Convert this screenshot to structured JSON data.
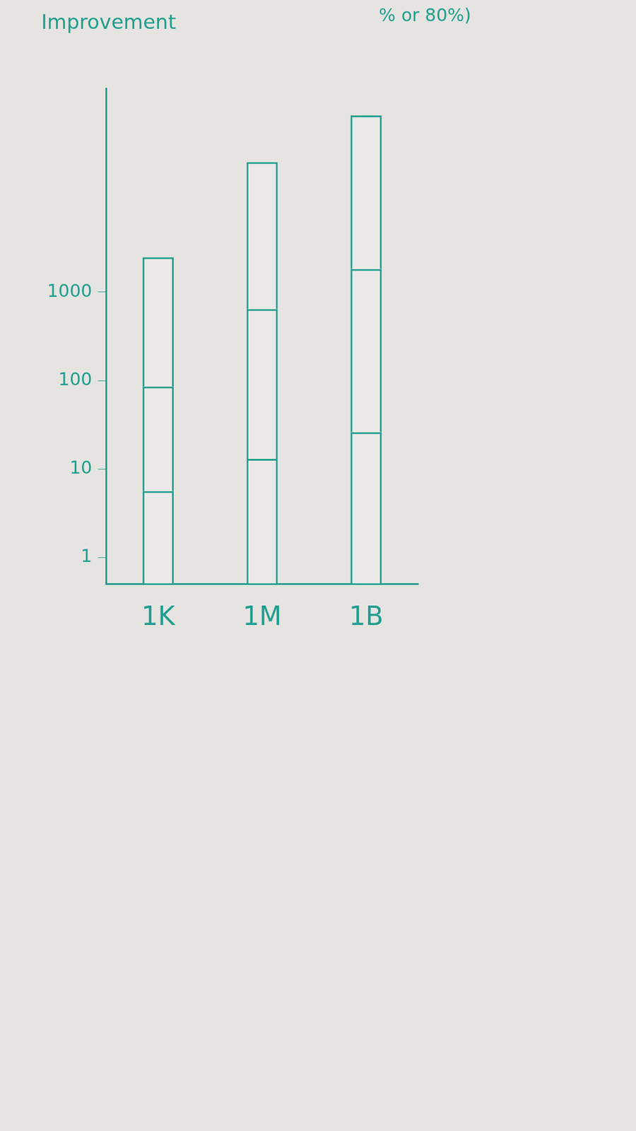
{
  "chart_data": {
    "type": "bar",
    "title": "Improvement",
    "annotations": [
      "% or 80%)"
    ],
    "categories": [
      "1K",
      "1M",
      "1B"
    ],
    "series": [
      {
        "values": [
          5.6,
          13,
          26
        ]
      },
      {
        "values": [
          80,
          630,
          1800
        ]
      },
      {
        "values": [
          2400,
          29000,
          98000
        ]
      }
    ],
    "color": "#1f9e8f",
    "stacked": true,
    "log": "y",
    "ylim": [
      0.5,
      200000
    ],
    "yticks": [
      1,
      10,
      100,
      1000
    ],
    "grid": false
  }
}
